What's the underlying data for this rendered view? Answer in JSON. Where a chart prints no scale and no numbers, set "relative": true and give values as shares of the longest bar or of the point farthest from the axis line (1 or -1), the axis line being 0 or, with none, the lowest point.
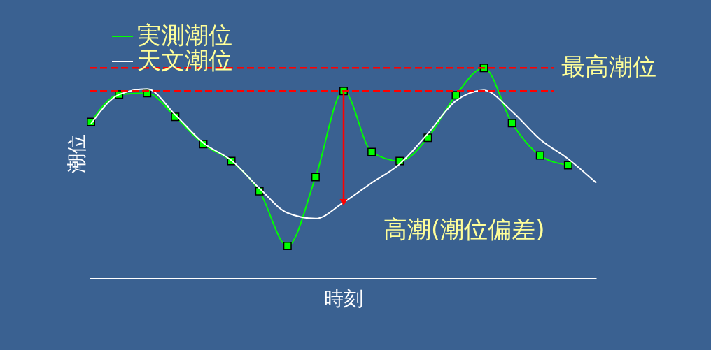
{
  "chart_data": {
    "type": "line",
    "relative": true,
    "xlabel": "時刻",
    "ylabel": "潮位",
    "categories": [
      null,
      null,
      null,
      null,
      null,
      null,
      null,
      null,
      null,
      null,
      null,
      null,
      null,
      null,
      null,
      null,
      null,
      null,
      null
    ],
    "series": [
      {
        "name": "実測潮位",
        "color": "#00ff00",
        "marker": "square",
        "values": [
          0.743,
          0.873,
          0.88,
          0.767,
          0.637,
          0.557,
          0.413,
          0.153,
          0.48,
          0.89,
          0.6,
          0.557,
          0.667,
          0.87,
          1.0,
          0.737,
          0.583,
          0.537,
          null
        ]
      },
      {
        "name": "天文潮位",
        "color": "#ffffff",
        "marker": "none",
        "values": [
          0.733,
          0.873,
          0.9,
          0.777,
          0.643,
          0.56,
          0.427,
          0.31,
          0.283,
          0.36,
          0.453,
          0.543,
          0.687,
          0.843,
          0.893,
          0.793,
          0.66,
          0.567,
          0.453
        ]
      }
    ],
    "ref_lines": [
      {
        "axis": "y",
        "value": 1.0,
        "label": "最高潮位",
        "color": "#ff0000",
        "line_style": "dashed"
      },
      {
        "axis": "y",
        "value": 0.89,
        "color": "#ff0000",
        "line_style": "dashed"
      }
    ],
    "annotations": [
      "高潮(潮位偏差)"
    ],
    "legend": "top left"
  }
}
